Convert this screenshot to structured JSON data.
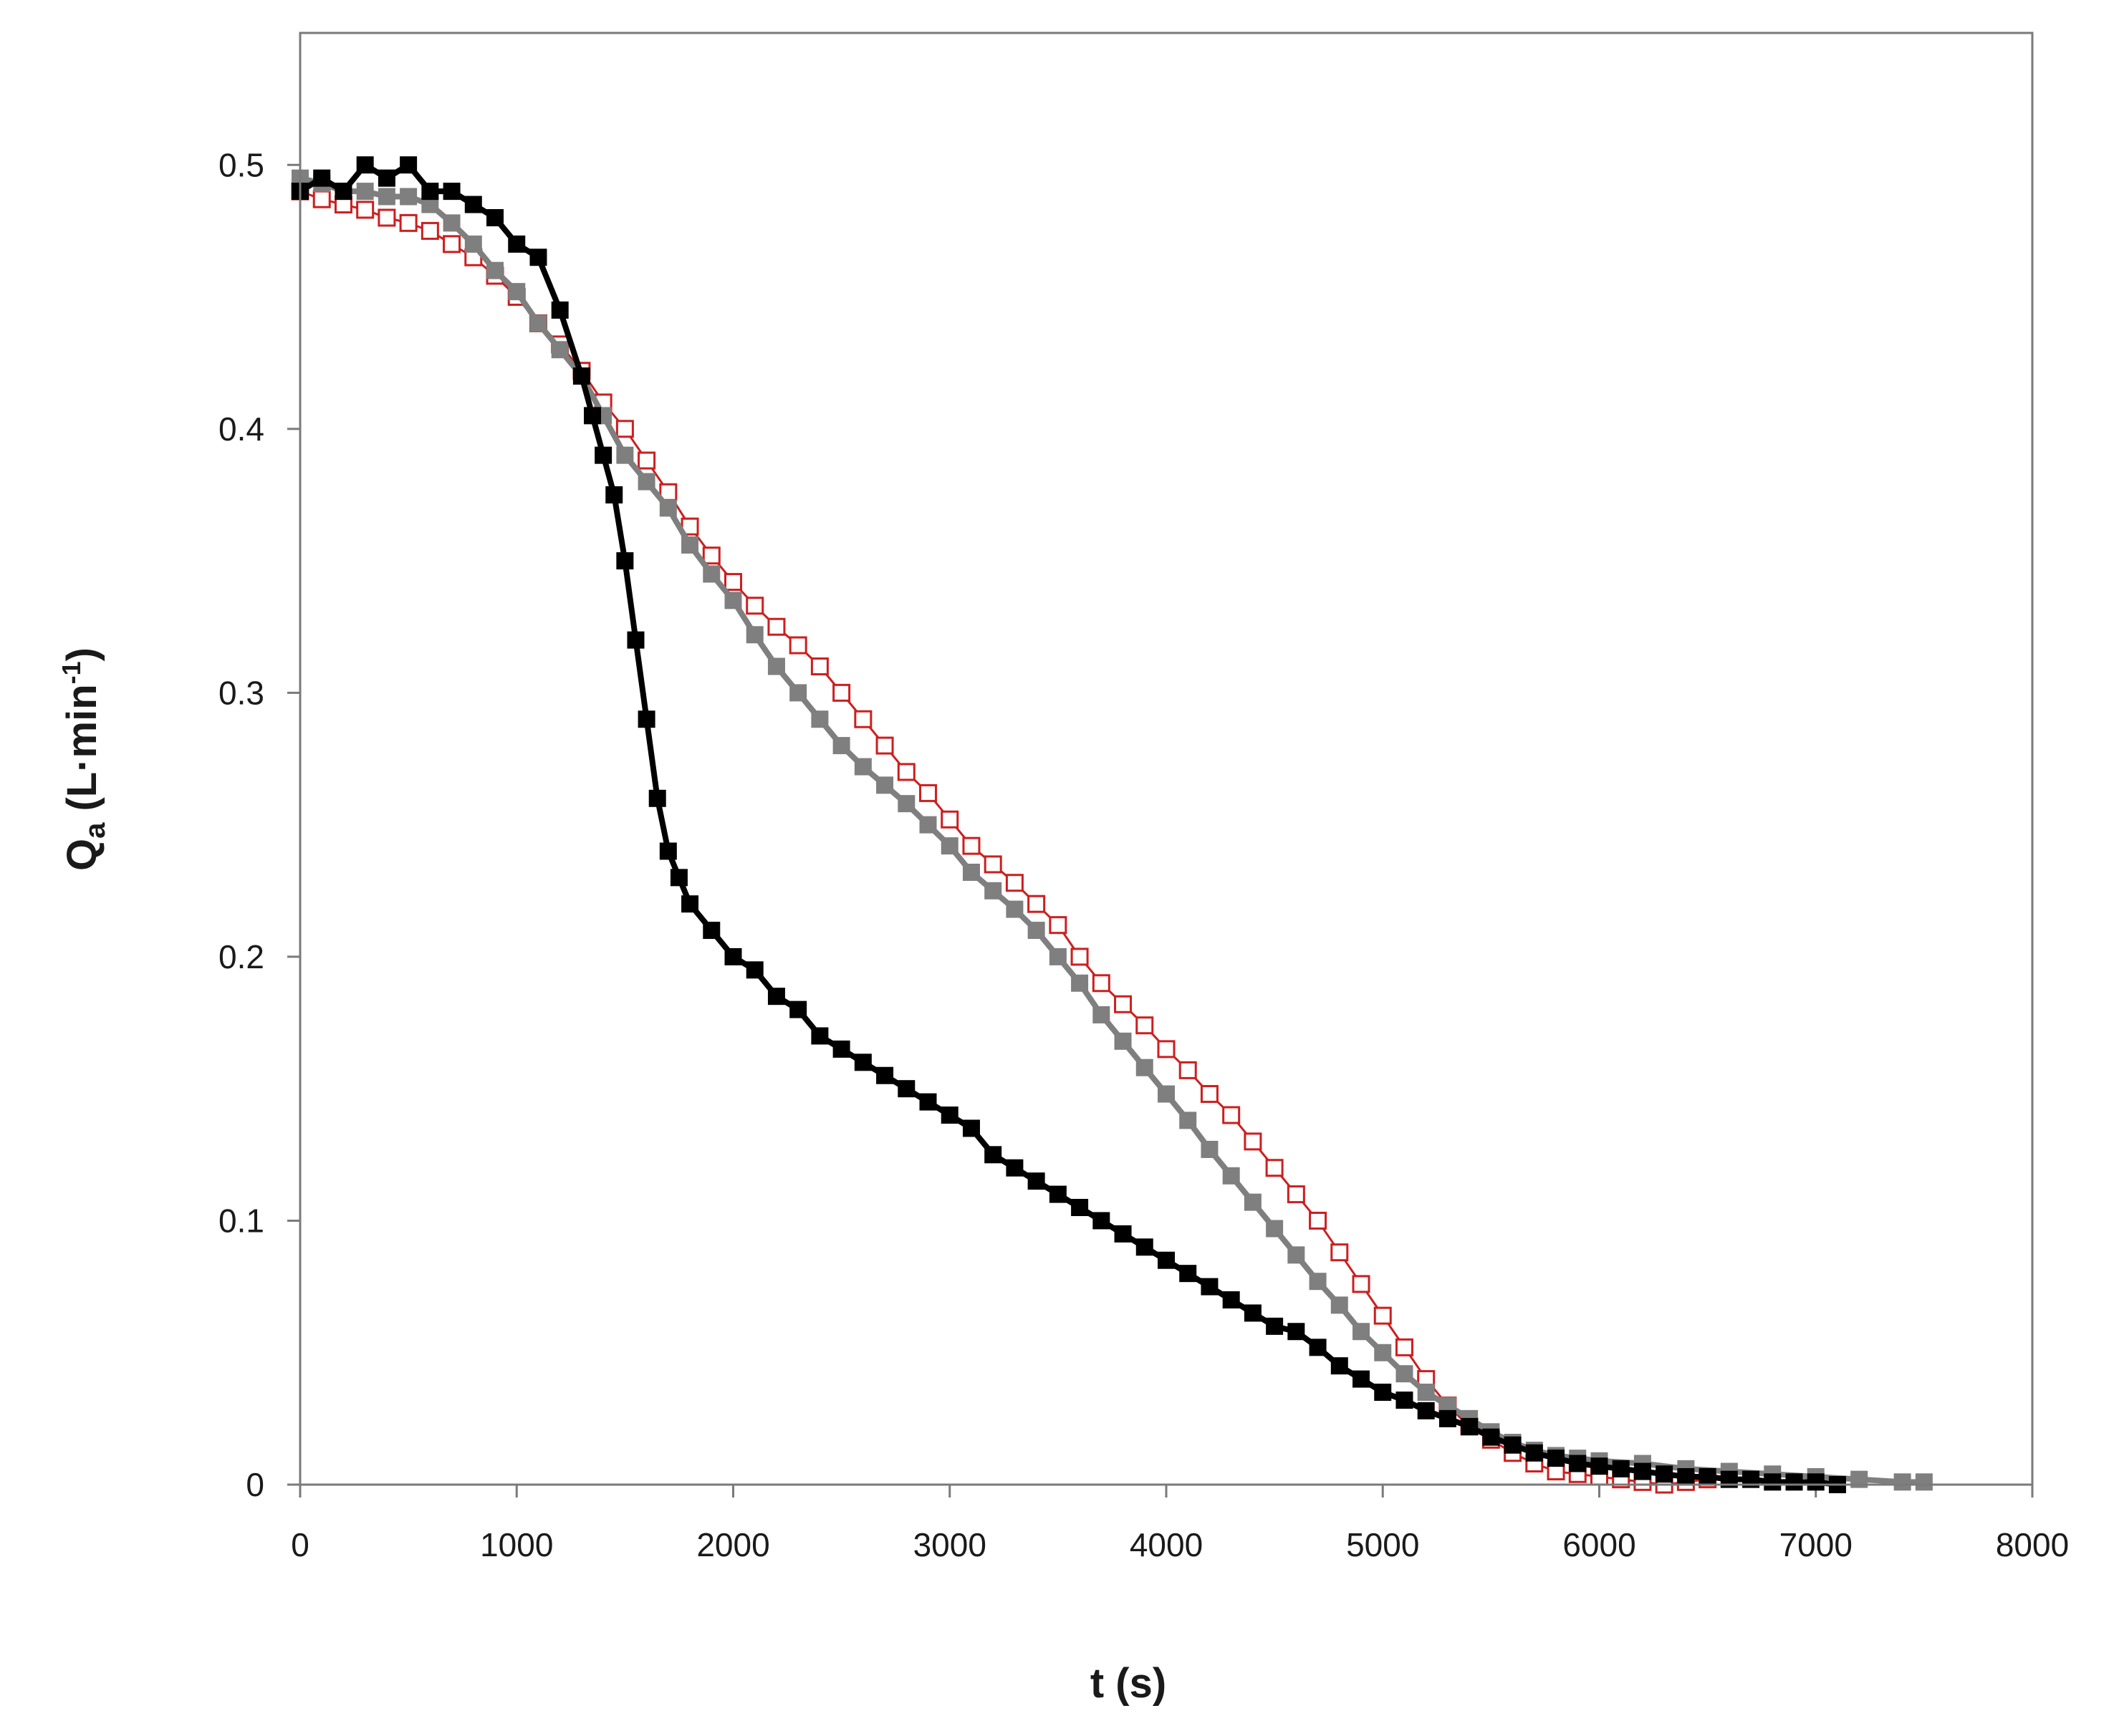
{
  "chart_data": {
    "type": "scatter",
    "title": "",
    "xlabel": "t (s)",
    "ylabel": {
      "main": "Q",
      "sub": "a",
      "unit_open": " (L·min",
      "unit_sup": "-1",
      "unit_close": ")"
    },
    "xlim": [
      0,
      8000
    ],
    "ylim": [
      0,
      0.55
    ],
    "xticks": [
      {
        "value": 0,
        "label": "0"
      },
      {
        "value": 1000,
        "label": "1000"
      },
      {
        "value": 2000,
        "label": "2000"
      },
      {
        "value": 3000,
        "label": "3000"
      },
      {
        "value": 4000,
        "label": "4000"
      },
      {
        "value": 5000,
        "label": "5000"
      },
      {
        "value": 6000,
        "label": "6000"
      },
      {
        "value": 7000,
        "label": "7000"
      },
      {
        "value": 8000,
        "label": "8000"
      }
    ],
    "yticks": [
      {
        "value": 0,
        "label": "0"
      },
      {
        "value": 0.1,
        "label": "0.1"
      },
      {
        "value": 0.2,
        "label": "0.2"
      },
      {
        "value": 0.3,
        "label": "0.3"
      },
      {
        "value": 0.4,
        "label": "0.4"
      },
      {
        "value": 0.5,
        "label": "0.5"
      }
    ],
    "grid": false,
    "legend": "none",
    "series": [
      {
        "marker": "filled-square",
        "color": "#000000",
        "x": [
          0,
          100,
          200,
          300,
          400,
          500,
          600,
          700,
          800,
          900,
          1000,
          1100,
          1200,
          1300,
          1350,
          1400,
          1450,
          1500,
          1550,
          1600,
          1650,
          1700,
          1750,
          1800,
          1900,
          2000,
          2100,
          2200,
          2300,
          2400,
          2500,
          2600,
          2700,
          2800,
          2900,
          3000,
          3100,
          3200,
          3300,
          3400,
          3500,
          3600,
          3700,
          3800,
          3900,
          4000,
          4100,
          4200,
          4300,
          4400,
          4500,
          4600,
          4700,
          4800,
          4900,
          5000,
          5100,
          5200,
          5300,
          5400,
          5500,
          5600,
          5700,
          5800,
          5900,
          6000,
          6100,
          6200,
          6300,
          6400,
          6500,
          6600,
          6700,
          6800,
          6900,
          7000,
          7100
        ],
        "y": [
          0.49,
          0.495,
          0.49,
          0.5,
          0.495,
          0.5,
          0.49,
          0.49,
          0.485,
          0.48,
          0.47,
          0.465,
          0.445,
          0.42,
          0.405,
          0.39,
          0.375,
          0.35,
          0.32,
          0.29,
          0.26,
          0.24,
          0.23,
          0.22,
          0.21,
          0.2,
          0.195,
          0.185,
          0.18,
          0.17,
          0.165,
          0.16,
          0.155,
          0.15,
          0.145,
          0.14,
          0.135,
          0.125,
          0.12,
          0.115,
          0.11,
          0.105,
          0.1,
          0.095,
          0.09,
          0.085,
          0.08,
          0.075,
          0.07,
          0.065,
          0.06,
          0.058,
          0.052,
          0.045,
          0.04,
          0.035,
          0.032,
          0.028,
          0.025,
          0.022,
          0.018,
          0.015,
          0.012,
          0.01,
          0.008,
          0.007,
          0.006,
          0.005,
          0.004,
          0.003,
          0.003,
          0.002,
          0.002,
          0.001,
          0.001,
          0.001,
          0.0
        ]
      },
      {
        "marker": "open-square",
        "color": "#cc1f1f",
        "x": [
          0,
          100,
          200,
          300,
          400,
          500,
          600,
          700,
          800,
          900,
          1000,
          1100,
          1200,
          1300,
          1400,
          1500,
          1600,
          1700,
          1800,
          1900,
          2000,
          2100,
          2200,
          2300,
          2400,
          2500,
          2600,
          2700,
          2800,
          2900,
          3000,
          3100,
          3200,
          3300,
          3400,
          3500,
          3600,
          3700,
          3800,
          3900,
          4000,
          4100,
          4200,
          4300,
          4400,
          4500,
          4600,
          4700,
          4800,
          4900,
          5000,
          5100,
          5200,
          5300,
          5400,
          5500,
          5600,
          5700,
          5800,
          5900,
          6000,
          6100,
          6200,
          6300,
          6400,
          6500
        ],
        "y": [
          0.49,
          0.487,
          0.485,
          0.483,
          0.48,
          0.478,
          0.475,
          0.47,
          0.465,
          0.458,
          0.45,
          0.44,
          0.432,
          0.422,
          0.41,
          0.4,
          0.388,
          0.376,
          0.363,
          0.352,
          0.342,
          0.333,
          0.325,
          0.318,
          0.31,
          0.3,
          0.29,
          0.28,
          0.27,
          0.262,
          0.252,
          0.242,
          0.235,
          0.228,
          0.22,
          0.212,
          0.2,
          0.19,
          0.182,
          0.174,
          0.165,
          0.157,
          0.148,
          0.14,
          0.13,
          0.12,
          0.11,
          0.1,
          0.088,
          0.076,
          0.064,
          0.052,
          0.04,
          0.03,
          0.022,
          0.017,
          0.012,
          0.008,
          0.005,
          0.004,
          0.003,
          0.002,
          0.001,
          0.0,
          0.001,
          0.002
        ]
      },
      {
        "marker": "filled-square",
        "color": "#7f7f7f",
        "x": [
          0,
          100,
          200,
          300,
          400,
          500,
          600,
          700,
          800,
          900,
          1000,
          1100,
          1200,
          1300,
          1400,
          1500,
          1600,
          1700,
          1800,
          1900,
          2000,
          2100,
          2200,
          2300,
          2400,
          2500,
          2600,
          2700,
          2800,
          2900,
          3000,
          3100,
          3200,
          3300,
          3400,
          3500,
          3600,
          3700,
          3800,
          3900,
          4000,
          4100,
          4200,
          4300,
          4400,
          4500,
          4600,
          4700,
          4800,
          4900,
          5000,
          5100,
          5200,
          5300,
          5400,
          5500,
          5600,
          5700,
          5800,
          5900,
          6000,
          6200,
          6400,
          6600,
          6800,
          7000,
          7200,
          7400,
          7500
        ],
        "y": [
          0.495,
          0.493,
          0.49,
          0.49,
          0.488,
          0.488,
          0.485,
          0.478,
          0.47,
          0.46,
          0.452,
          0.44,
          0.43,
          0.42,
          0.405,
          0.39,
          0.38,
          0.37,
          0.356,
          0.345,
          0.335,
          0.322,
          0.31,
          0.3,
          0.29,
          0.28,
          0.272,
          0.265,
          0.258,
          0.25,
          0.242,
          0.232,
          0.225,
          0.218,
          0.21,
          0.2,
          0.19,
          0.178,
          0.168,
          0.158,
          0.148,
          0.138,
          0.127,
          0.117,
          0.107,
          0.097,
          0.087,
          0.077,
          0.068,
          0.058,
          0.05,
          0.042,
          0.035,
          0.03,
          0.025,
          0.02,
          0.016,
          0.013,
          0.011,
          0.01,
          0.009,
          0.008,
          0.006,
          0.005,
          0.004,
          0.003,
          0.002,
          0.001,
          0.001
        ]
      }
    ]
  }
}
